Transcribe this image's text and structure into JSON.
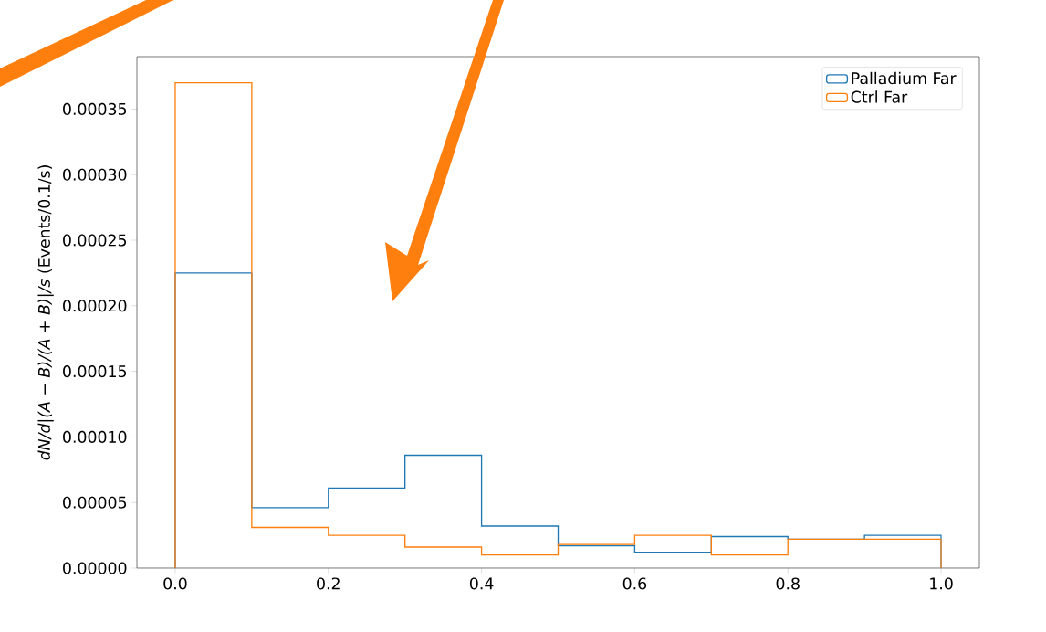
{
  "chart_data": {
    "type": "histogram",
    "ylabel": "*dN/d|(A − B)/(A + B)|/s* (Events/0.1/s)",
    "bins": [
      0.0,
      0.1,
      0.2,
      0.3,
      0.4,
      0.5,
      0.6,
      0.7,
      0.8,
      0.9,
      1.0
    ],
    "series": [
      {
        "name": "Palladium Far",
        "color": "#1f77b4",
        "values": [
          0.000225,
          4.6e-05,
          6.1e-05,
          8.6e-05,
          3.2e-05,
          1.7e-05,
          1.2e-05,
          2.4e-05,
          2.2e-05,
          2.5e-05
        ]
      },
      {
        "name": "Ctrl Far",
        "color": "#ff7f0e",
        "values": [
          0.00037,
          3.1e-05,
          2.5e-05,
          1.6e-05,
          1e-05,
          1.8e-05,
          2.5e-05,
          1e-05,
          2.2e-05,
          2.2e-05
        ]
      }
    ],
    "xlim": [
      -0.05,
      1.05
    ],
    "ylim": [
      0,
      0.00039
    ],
    "xticks": [
      {
        "value": 0.0,
        "label": "0.0"
      },
      {
        "value": 0.2,
        "label": "0.2"
      },
      {
        "value": 0.4,
        "label": "0.4"
      },
      {
        "value": 0.6,
        "label": "0.6"
      },
      {
        "value": 0.8,
        "label": "0.8"
      },
      {
        "value": 1.0,
        "label": "1.0"
      }
    ],
    "yticks": [
      {
        "value": 0,
        "label": "0.00000"
      },
      {
        "value": 5e-05,
        "label": "0.00005"
      },
      {
        "value": 0.0001,
        "label": "0.00010"
      },
      {
        "value": 0.00015,
        "label": "0.00015"
      },
      {
        "value": 0.0002,
        "label": "0.00020"
      },
      {
        "value": 0.00025,
        "label": "0.00025"
      },
      {
        "value": 0.0003,
        "label": "0.00030"
      },
      {
        "value": 0.00035,
        "label": "0.00035"
      }
    ],
    "legend": "top right",
    "grid": false
  }
}
